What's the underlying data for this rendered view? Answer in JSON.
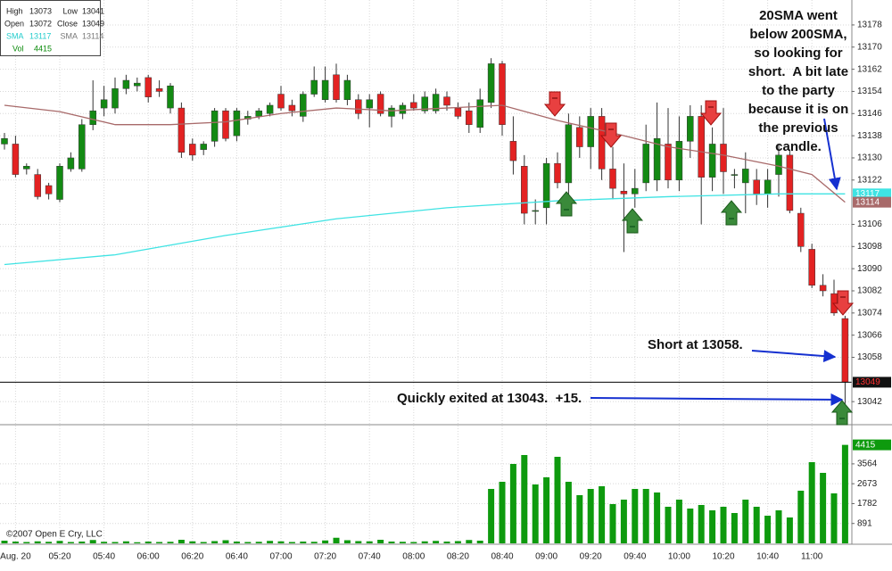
{
  "chart_data": {
    "type": "candlestick",
    "categories": [
      null,
      "Aug. 20",
      null,
      null,
      null,
      "05:20",
      null,
      null,
      null,
      "05:40",
      null,
      null,
      null,
      "06:00",
      null,
      null,
      null,
      "06:20",
      null,
      null,
      null,
      "06:40",
      null,
      null,
      null,
      "07:00",
      null,
      null,
      null,
      "07:20",
      null,
      null,
      null,
      "07:40",
      null,
      null,
      null,
      "08:00",
      null,
      null,
      null,
      "08:20",
      null,
      null,
      null,
      "08:40",
      null,
      null,
      null,
      "09:00",
      null,
      null,
      null,
      "09:20",
      null,
      null,
      null,
      "09:40",
      null,
      null,
      null,
      "10:00",
      null,
      null,
      null,
      "10:20",
      null,
      null,
      null,
      "10:40",
      null,
      null,
      null,
      "11:00",
      null,
      null,
      null
    ],
    "open": [
      13135,
      13135,
      13126,
      13124,
      13120,
      13115,
      13126,
      13126,
      13142,
      13148,
      13148,
      13155,
      13156,
      13159,
      13155,
      13148,
      13148,
      13135,
      13133,
      13136,
      13147,
      13138,
      13144,
      13145,
      13146,
      13153,
      13149,
      13145,
      13153,
      13151,
      13160,
      13151,
      13151,
      13148,
      13153,
      13145,
      13146,
      13150,
      13147,
      13147,
      13152,
      13148,
      13147,
      13141,
      13150,
      13164,
      13136,
      13127,
      13111,
      13112,
      13128,
      13121,
      13141,
      13134,
      13145,
      13126,
      13118,
      13117,
      13121,
      13122,
      13135,
      13122,
      13136,
      13145,
      13123,
      13135,
      13124,
      13121,
      13122,
      13117,
      13124,
      13131,
      13110,
      13097,
      13084,
      13081,
      13072
    ],
    "high": [
      13139,
      13138,
      13128,
      13126,
      13121,
      13128,
      13132,
      13144,
      13158,
      13156,
      13159,
      13160,
      13159,
      13160,
      13158,
      13157,
      13150,
      13137,
      13136,
      13148,
      13148,
      13148,
      13147,
      13148,
      13150,
      13156,
      13151,
      13154,
      13163,
      13163,
      13164,
      13160,
      13153,
      13153,
      13154,
      13149,
      13150,
      13153,
      13154,
      13155,
      13154,
      13150,
      13150,
      13155,
      13166,
      13165,
      13145,
      13131,
      13115,
      13130,
      13132,
      13146,
      13145,
      13148,
      13148,
      13134,
      13128,
      13126,
      13142,
      13150,
      13148,
      13145,
      13149,
      13149,
      13141,
      13148,
      13126,
      13132,
      13126,
      13126,
      13135,
      13133,
      13112,
      13099,
      13088,
      13086,
      13073
    ],
    "low": [
      13133,
      13123,
      13124,
      13115,
      13115,
      13114,
      13125,
      13125,
      13140,
      13145,
      13146,
      13153,
      13154,
      13150,
      13152,
      13146,
      13130,
      13129,
      13131,
      13134,
      13136,
      13136,
      13142,
      13144,
      13145,
      13147,
      13145,
      13143,
      13152,
      13150,
      13150,
      13149,
      13144,
      13141,
      13145,
      13141,
      13144,
      13147,
      13146,
      13146,
      13147,
      13144,
      13139,
      13139,
      13148,
      13138,
      13124,
      13106,
      13106,
      13106,
      13119,
      13114,
      13130,
      13126,
      13122,
      13115,
      13096,
      13112,
      13118,
      13118,
      13119,
      13118,
      13130,
      13106,
      13118,
      13117,
      13119,
      13110,
      13113,
      13112,
      13116,
      13110,
      13096,
      13083,
      13080,
      13073,
      13041
    ],
    "close": [
      13137,
      13124,
      13127,
      13116,
      13117,
      13127,
      13130,
      13142,
      13147,
      13151,
      13155,
      13158,
      13157,
      13152,
      13154,
      13156,
      13132,
      13131,
      13135,
      13147,
      13137,
      13147,
      13145,
      13147,
      13149,
      13148,
      13147,
      13153,
      13158,
      13158,
      13151,
      13158,
      13146,
      13151,
      13146,
      13148,
      13149,
      13148,
      13152,
      13153,
      13149,
      13145,
      13142,
      13151,
      13164,
      13142,
      13129,
      13110,
      13111,
      13128,
      13121,
      13142,
      13134,
      13145,
      13126,
      13119,
      13117,
      13119,
      13135,
      13137,
      13122,
      13136,
      13145,
      13123,
      13135,
      13125,
      13124,
      13126,
      13117,
      13122,
      13131,
      13111,
      13098,
      13084,
      13082,
      13074,
      13049
    ],
    "colors": {
      "up": "#138a13",
      "down": "#e32222"
    },
    "ylim": [
      13034,
      13187
    ],
    "yticks": [
      13042,
      13058,
      13066,
      13074,
      13082,
      13090,
      13098,
      13106,
      13122,
      13130,
      13138,
      13146,
      13154,
      13162,
      13170,
      13178
    ],
    "grid": true,
    "lines": [
      {
        "name": "SMA",
        "color": "#3fe3e3",
        "x": [
          0,
          10,
          20,
          30,
          40,
          50,
          60,
          70,
          76
        ],
        "values": [
          13091.5,
          13095,
          13102,
          13108,
          13112,
          13114.5,
          13116,
          13117,
          13117
        ]
      },
      {
        "name": "SMA",
        "color": "#a86a6a",
        "x": [
          0,
          5,
          10,
          15,
          20,
          25,
          30,
          35,
          40,
          45,
          50,
          55,
          60,
          65,
          70,
          73,
          76
        ],
        "values": [
          13149,
          13146.7,
          13142,
          13142,
          13143,
          13146,
          13148,
          13147,
          13148,
          13149,
          13143.5,
          13139,
          13134,
          13131,
          13127,
          13124,
          13114
        ]
      }
    ],
    "volume": {
      "name": "Vol",
      "color": "#0e9a0e",
      "values": [
        120,
        80,
        60,
        90,
        70,
        110,
        60,
        80,
        150,
        70,
        60,
        90,
        50,
        80,
        60,
        70,
        160,
        90,
        60,
        100,
        140,
        80,
        60,
        70,
        110,
        90,
        60,
        80,
        70,
        130,
        250,
        140,
        100,
        90,
        160,
        80,
        70,
        60,
        90,
        110,
        80,
        100,
        150,
        120,
        2440,
        2760,
        3560,
        3960,
        2640,
        2960,
        3880,
        2760,
        2160,
        2440,
        2560,
        1760,
        1960,
        2440,
        2440,
        2280,
        1640,
        1960,
        1560,
        1720,
        1480,
        1640,
        1360,
        1960,
        1640,
        1240,
        1480,
        1160,
        2360,
        3640,
        3160,
        2240,
        4415
      ],
      "ylim": [
        0,
        5160
      ],
      "yticks": [
        891,
        1782,
        2673,
        3564
      ]
    },
    "info_labels": {
      "high": "High",
      "low": "Low",
      "open": "Open",
      "close": "Close"
    },
    "annotations": {
      "note": [
        "20SMA went",
        "below 200SMA,",
        "so looking for",
        "short.  A bit late",
        "to the party",
        "because it is on",
        "the previous",
        "candle."
      ],
      "entry": "Short at 13058.",
      "exit": "Quickly exited at 13043.  +15."
    },
    "copyright": "©2007 Open E Cry, LLC"
  }
}
